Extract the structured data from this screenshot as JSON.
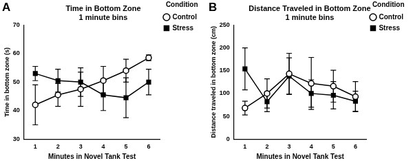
{
  "chart_data": [
    {
      "label": "A",
      "type": "line",
      "title": [
        "Time in Bottom Zone",
        "1 minute bins"
      ],
      "x_label": "Minutes in Novel Tank Test",
      "y_label": "Time in bottom zone (s)",
      "categories": [
        "1",
        "2",
        "3",
        "4",
        "5",
        "6"
      ],
      "series": [
        {
          "name": "Control",
          "color": "#000000",
          "marker": "circle_open",
          "values": [
            42,
            45.5,
            47.5,
            50.5,
            54,
            58.5
          ],
          "errors": [
            7,
            4,
            6,
            5,
            4,
            1
          ]
        },
        {
          "name": "Stress",
          "color": "#000000",
          "marker": "square",
          "values": [
            53,
            50.5,
            50,
            45.5,
            44.5,
            50
          ],
          "errors": [
            2.5,
            4,
            5,
            5.5,
            7,
            4.5
          ]
        }
      ],
      "ylim": [
        30,
        70
      ],
      "yticks": [
        30,
        40,
        50,
        60,
        70
      ],
      "grid": false,
      "legend": "right",
      "legend_title": "Condition"
    },
    {
      "label": "B",
      "type": "line",
      "title": [
        "Distance Traveled in Bottom Zone",
        "1 minute bins"
      ],
      "x_label": "Minutes in Novel Tank Test",
      "y_label": "Distance traveled in bottom zone (cm)",
      "categories": [
        "1",
        "2",
        "3",
        "4",
        "5",
        "6"
      ],
      "series": [
        {
          "name": "Control",
          "color": "#000000",
          "marker": "circle_open",
          "values": [
            68,
            100,
            143,
            122,
            116,
            93
          ],
          "errors": [
            15,
            32,
            45,
            57,
            35,
            33
          ]
        },
        {
          "name": "Stress",
          "color": "#000000",
          "marker": "square",
          "values": [
            154,
            82,
            138,
            100,
            96,
            83
          ],
          "errors": [
            46,
            22,
            40,
            30,
            30,
            22
          ]
        }
      ],
      "ylim": [
        0,
        250
      ],
      "yticks": [
        0,
        50,
        100,
        150,
        200,
        250
      ],
      "grid": false,
      "legend": "right",
      "legend_title": "Condition"
    }
  ]
}
